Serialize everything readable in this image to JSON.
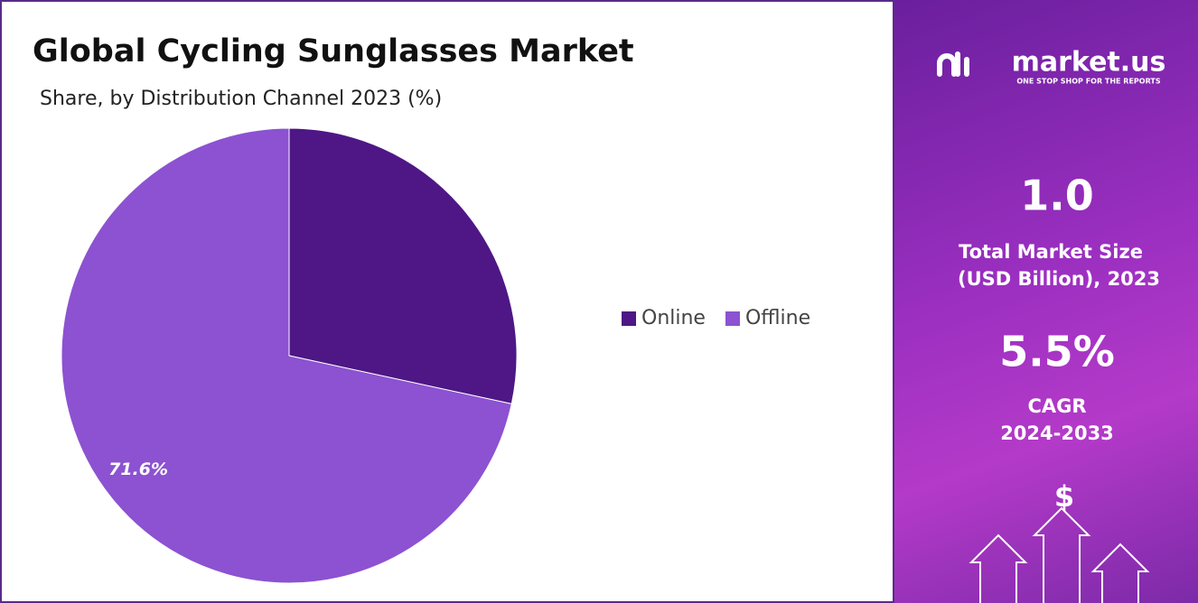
{
  "chart_data": {
    "type": "pie",
    "title": "Global Cycling Sunglasses Market",
    "subtitle": "Share, by Distribution Channel 2023 (%)",
    "categories": [
      "Online",
      "Offline"
    ],
    "values": [
      28.4,
      71.6
    ],
    "value_labels": [
      null,
      "71.6%"
    ],
    "colors": [
      "#4e1785",
      "#8c52d1"
    ]
  },
  "sidebar": {
    "brand": "market.us",
    "tagline": "ONE STOP SHOP FOR THE REPORTS",
    "market_size": "1.0",
    "market_size_label_1": "Total Market Size",
    "market_size_label_2": "(USD Billion), 2023",
    "cagr": "5.5%",
    "cagr_label_1": "CAGR",
    "cagr_label_2": "2024-2033",
    "icon": "$"
  }
}
